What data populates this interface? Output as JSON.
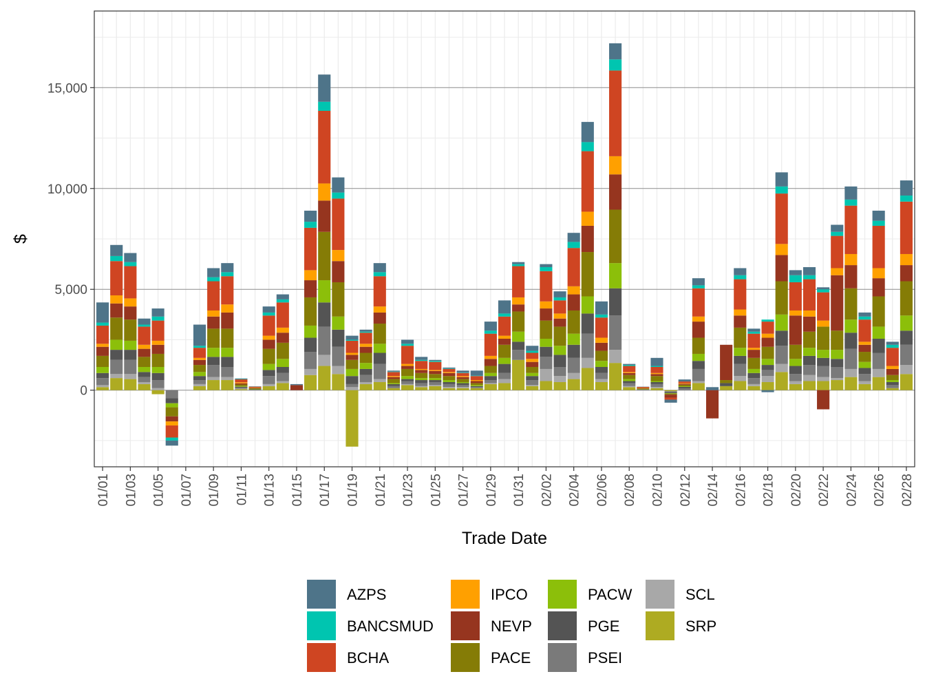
{
  "chart_data": {
    "type": "bar",
    "stacked": true,
    "xlabel": "Trade Date",
    "ylabel": "$",
    "ylim": [
      -3800,
      18800
    ],
    "yticks": [
      0,
      5000,
      10000,
      15000
    ],
    "ytick_labels": [
      "0",
      "5,000",
      "10,000",
      "15,000"
    ],
    "grid": true,
    "legend_position": "bottom",
    "categories": [
      "01/01",
      "01/02",
      "01/03",
      "01/04",
      "01/05",
      "01/06",
      "01/07",
      "01/08",
      "01/09",
      "01/10",
      "01/11",
      "01/12",
      "01/13",
      "01/14",
      "01/15",
      "01/16",
      "01/17",
      "01/18",
      "01/19",
      "01/20",
      "01/21",
      "01/22",
      "01/23",
      "01/24",
      "01/25",
      "01/26",
      "01/27",
      "01/28",
      "01/29",
      "01/30",
      "01/31",
      "02/01",
      "02/02",
      "02/03",
      "02/04",
      "02/05",
      "02/06",
      "02/07",
      "02/08",
      "02/09",
      "02/10",
      "02/11",
      "02/12",
      "02/13",
      "02/14",
      "02/15",
      "02/16",
      "02/17",
      "02/18",
      "02/19",
      "02/20",
      "02/21",
      "02/22",
      "02/23",
      "02/24",
      "02/25",
      "02/26",
      "02/27",
      "02/28"
    ],
    "tick_labels": [
      "01/01",
      "01/03",
      "01/05",
      "01/07",
      "01/09",
      "01/11",
      "01/13",
      "01/15",
      "01/17",
      "01/19",
      "01/21",
      "01/23",
      "01/25",
      "01/27",
      "01/29",
      "01/31",
      "02/02",
      "02/04",
      "02/06",
      "02/08",
      "02/10",
      "02/12",
      "02/14",
      "02/16",
      "02/18",
      "02/20",
      "02/22",
      "02/24",
      "02/26",
      "02/28"
    ],
    "series": [
      {
        "name": "SRP",
        "color": "#AEAB22",
        "values": [
          150,
          600,
          550,
          300,
          -200,
          0,
          0,
          200,
          500,
          500,
          50,
          0,
          200,
          350,
          0,
          750,
          1200,
          800,
          -2800,
          300,
          400,
          100,
          250,
          150,
          200,
          100,
          100,
          100,
          300,
          350,
          1500,
          200,
          450,
          400,
          550,
          1100,
          400,
          1350,
          150,
          0,
          100,
          -50,
          0,
          350,
          0,
          200,
          450,
          200,
          400,
          900,
          300,
          450,
          450,
          500,
          650,
          300,
          650,
          100,
          800
        ]
      },
      {
        "name": "SCL",
        "color": "#A8A8A8",
        "values": [
          100,
          200,
          250,
          100,
          100,
          0,
          0,
          100,
          150,
          150,
          20,
          0,
          100,
          100,
          0,
          300,
          550,
          400,
          150,
          100,
          150,
          0,
          50,
          50,
          50,
          50,
          50,
          0,
          50,
          200,
          0,
          50,
          600,
          300,
          300,
          500,
          150,
          650,
          50,
          0,
          50,
          0,
          0,
          100,
          0,
          0,
          250,
          100,
          300,
          400,
          150,
          300,
          200,
          100,
          400,
          150,
          400,
          0,
          450
        ]
      },
      {
        "name": "PSEI",
        "color": "#7A7A7A",
        "values": [
          350,
          700,
          700,
          250,
          400,
          -400,
          0,
          200,
          600,
          500,
          50,
          20,
          400,
          400,
          0,
          850,
          1400,
          950,
          150,
          350,
          750,
          100,
          150,
          150,
          150,
          150,
          100,
          50,
          150,
          300,
          500,
          250,
          600,
          450,
          750,
          1200,
          300,
          1700,
          150,
          20,
          150,
          -50,
          80,
          600,
          0,
          0,
          600,
          300,
          300,
          900,
          350,
          500,
          550,
          550,
          1000,
          350,
          800,
          150,
          1000
        ]
      },
      {
        "name": "PGE",
        "color": "#545454",
        "values": [
          250,
          500,
          500,
          250,
          350,
          -250,
          0,
          200,
          400,
          500,
          50,
          20,
          300,
          300,
          0,
          700,
          1200,
          850,
          400,
          300,
          550,
          100,
          100,
          150,
          100,
          100,
          100,
          50,
          200,
          450,
          400,
          200,
          500,
          600,
          650,
          1000,
          300,
          1350,
          100,
          20,
          100,
          -50,
          80,
          400,
          0,
          150,
          400,
          250,
          250,
          750,
          400,
          450,
          400,
          400,
          800,
          300,
          700,
          150,
          700
        ]
      },
      {
        "name": "PACW",
        "color": "#8CBF0A",
        "values": [
          300,
          500,
          450,
          250,
          300,
          -200,
          0,
          200,
          450,
          450,
          30,
          20,
          300,
          400,
          0,
          600,
          1100,
          650,
          350,
          300,
          450,
          50,
          150,
          100,
          100,
          100,
          50,
          50,
          150,
          300,
          500,
          150,
          400,
          450,
          550,
          850,
          300,
          1250,
          100,
          10,
          50,
          -20,
          30,
          350,
          0,
          0,
          400,
          200,
          300,
          800,
          350,
          400,
          400,
          450,
          650,
          300,
          600,
          100,
          750
        ]
      },
      {
        "name": "PACE",
        "color": "#857C06",
        "values": [
          550,
          1100,
          1050,
          500,
          650,
          -450,
          0,
          350,
          950,
          950,
          80,
          30,
          750,
          800,
          0,
          1400,
          2400,
          1700,
          450,
          500,
          1000,
          200,
          350,
          250,
          200,
          200,
          150,
          100,
          350,
          650,
          1000,
          300,
          900,
          950,
          1150,
          2200,
          500,
          2650,
          200,
          30,
          250,
          -50,
          80,
          800,
          0,
          150,
          1000,
          550,
          600,
          1650,
          700,
          800,
          1150,
          950,
          1550,
          500,
          1500,
          250,
          1700
        ]
      },
      {
        "name": "NEVP",
        "color": "#96351F",
        "values": [
          450,
          700,
          650,
          400,
          450,
          -250,
          0,
          250,
          600,
          800,
          60,
          30,
          450,
          500,
          250,
          850,
          1550,
          1050,
          250,
          300,
          550,
          100,
          150,
          150,
          150,
          150,
          100,
          100,
          350,
          300,
          350,
          250,
          600,
          400,
          800,
          1300,
          400,
          1750,
          100,
          20,
          100,
          -150,
          50,
          800,
          -1400,
          1750,
          600,
          400,
          450,
          1300,
          1450,
          750,
          -950,
          2750,
          1150,
          350,
          900,
          300,
          800
        ]
      },
      {
        "name": "IPCO",
        "color": "#FFA000",
        "values": [
          150,
          400,
          400,
          200,
          200,
          -200,
          0,
          100,
          300,
          400,
          50,
          20,
          200,
          250,
          0,
          500,
          850,
          550,
          100,
          150,
          300,
          50,
          100,
          50,
          50,
          50,
          50,
          50,
          150,
          150,
          350,
          150,
          350,
          250,
          400,
          700,
          250,
          900,
          50,
          10,
          50,
          0,
          30,
          250,
          0,
          0,
          300,
          100,
          200,
          550,
          250,
          300,
          300,
          350,
          550,
          150,
          500,
          150,
          550
        ]
      },
      {
        "name": "BCHA",
        "color": "#CF4522",
        "values": [
          900,
          1700,
          1600,
          900,
          1000,
          -600,
          0,
          500,
          1450,
          1400,
          150,
          30,
          1000,
          1250,
          0,
          2100,
          3600,
          2550,
          600,
          550,
          1500,
          200,
          900,
          400,
          400,
          150,
          150,
          200,
          1100,
          950,
          1550,
          300,
          1500,
          650,
          1900,
          3000,
          1000,
          4250,
          300,
          50,
          300,
          -100,
          80,
          1400,
          0,
          0,
          1500,
          700,
          600,
          2500,
          1400,
          1550,
          1400,
          1600,
          2400,
          1100,
          2100,
          900,
          2600
        ]
      },
      {
        "name": "BANCSMUD",
        "color": "#00C5B0",
        "values": [
          150,
          250,
          200,
          100,
          200,
          -150,
          0,
          100,
          200,
          200,
          10,
          0,
          150,
          150,
          0,
          300,
          450,
          300,
          50,
          50,
          200,
          20,
          100,
          50,
          50,
          20,
          20,
          20,
          150,
          150,
          100,
          100,
          200,
          150,
          300,
          450,
          150,
          550,
          50,
          0,
          50,
          0,
          0,
          150,
          0,
          0,
          200,
          100,
          100,
          350,
          350,
          200,
          150,
          200,
          300,
          150,
          250,
          150,
          300
        ]
      },
      {
        "name": "AZPS",
        "color": "#4E7489",
        "values": [
          1000,
          550,
          450,
          300,
          400,
          -250,
          0,
          1050,
          450,
          450,
          30,
          20,
          300,
          250,
          50,
          550,
          1350,
          750,
          200,
          100,
          450,
          50,
          200,
          150,
          50,
          50,
          100,
          250,
          450,
          650,
          100,
          250,
          150,
          300,
          450,
          1000,
          650,
          800,
          50,
          10,
          400,
          -150,
          100,
          350,
          150,
          0,
          350,
          150,
          -100,
          700,
          250,
          400,
          100,
          350,
          650,
          200,
          500,
          150,
          750
        ]
      }
    ]
  }
}
